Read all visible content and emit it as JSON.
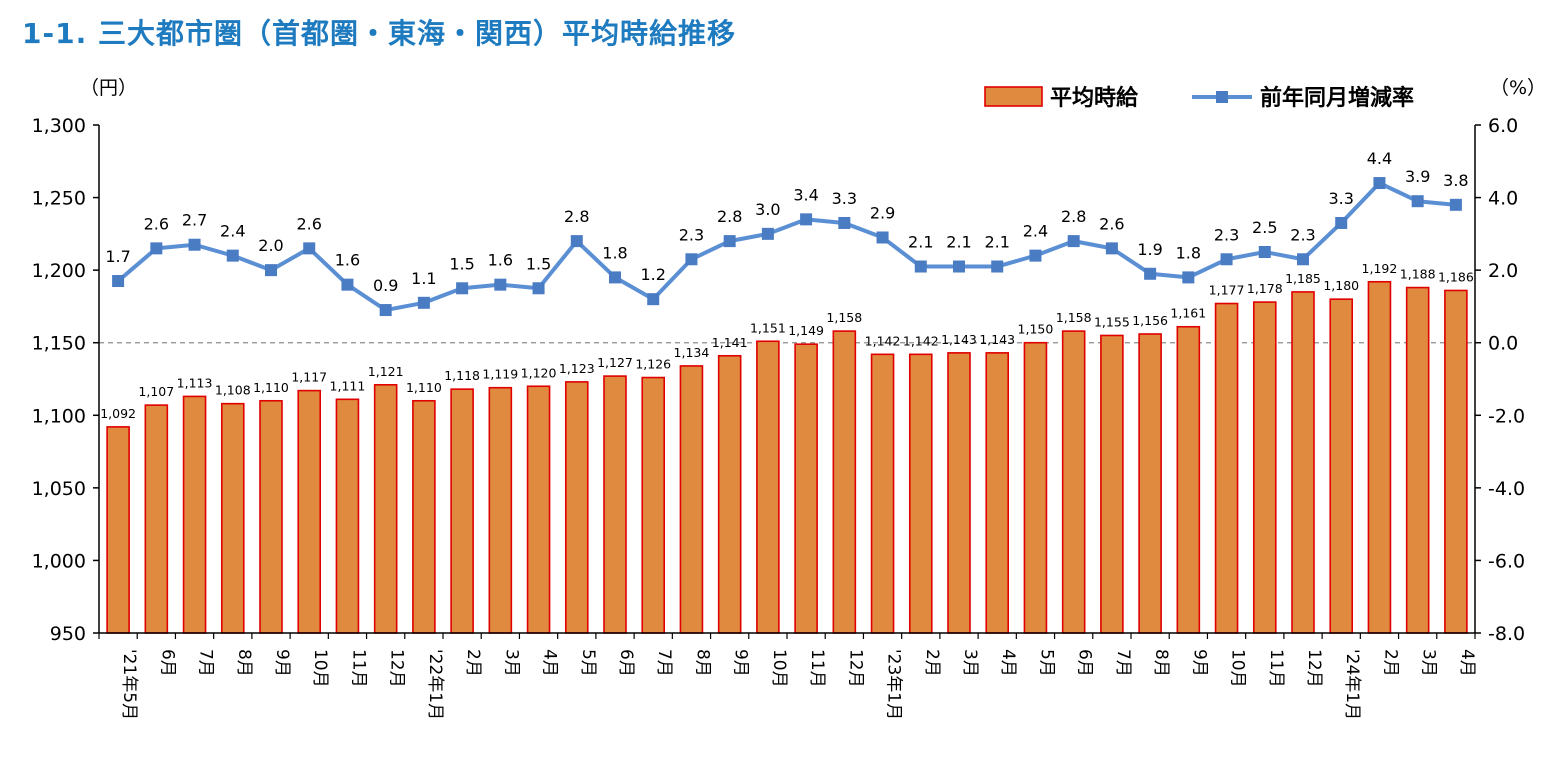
{
  "page": {
    "title": "1-1. 三大都市圏（首都圏・東海・関西）平均時給推移"
  },
  "chart_data": {
    "type": "bar",
    "categories": [
      "'21年5月",
      "6月",
      "7月",
      "8月",
      "9月",
      "10月",
      "11月",
      "12月",
      "'22年1月",
      "2月",
      "3月",
      "4月",
      "5月",
      "6月",
      "7月",
      "8月",
      "9月",
      "10月",
      "11月",
      "12月",
      "'23年1月",
      "2月",
      "3月",
      "4月",
      "5月",
      "6月",
      "7月",
      "8月",
      "9月",
      "10月",
      "11月",
      "12月",
      "'24年1月",
      "2月",
      "3月",
      "4月"
    ],
    "y_left": {
      "unit_label": "（円）",
      "range": [
        950,
        1300
      ],
      "ticks": [
        "950",
        "1,000",
        "1,050",
        "1,100",
        "1,150",
        "1,200",
        "1,250",
        "1,300"
      ]
    },
    "y_right": {
      "unit_label": "（%）",
      "range": [
        -8.0,
        6.0
      ],
      "ticks": [
        "-8.0",
        "-6.0",
        "-4.0",
        "-2.0",
        "0.0",
        "2.0",
        "4.0",
        "6.0"
      ]
    },
    "reference_line": {
      "axis": "right",
      "value": 0.0,
      "style": "dashed"
    },
    "series": [
      {
        "name": "平均時給",
        "type": "bar",
        "axis": "left",
        "color": "#e08a40",
        "border": "#e00000",
        "values": [
          1092,
          1107,
          1113,
          1108,
          1110,
          1117,
          1111,
          1121,
          1110,
          1118,
          1119,
          1120,
          1123,
          1127,
          1126,
          1134,
          1141,
          1151,
          1149,
          1158,
          1142,
          1142,
          1143,
          1143,
          1150,
          1158,
          1155,
          1156,
          1161,
          1177,
          1178,
          1185,
          1180,
          1192,
          1188,
          1186
        ],
        "labels": [
          "1,092",
          "1,107",
          "1,113",
          "1,108",
          "1,110",
          "1,117",
          "1,111",
          "1,121",
          "1,110",
          "1,118",
          "1,119",
          "1,120",
          "1,123",
          "1,127",
          "1,126",
          "1,134",
          "1,141",
          "1,151",
          "1,149",
          "1,158",
          "1,142",
          "1,142",
          "1,143",
          "1,143",
          "1,150",
          "1,158",
          "1,155",
          "1,156",
          "1,161",
          "1,177",
          "1,178",
          "1,185",
          "1,180",
          "1,192",
          "1,188",
          "1,186"
        ]
      },
      {
        "name": "前年同月増減率",
        "type": "line",
        "axis": "right",
        "color": "#5b8fd4",
        "marker": "square",
        "marker_color": "#4a7cc4",
        "values": [
          1.7,
          2.6,
          2.7,
          2.4,
          2.0,
          2.6,
          1.6,
          0.9,
          1.1,
          1.5,
          1.6,
          1.5,
          2.8,
          1.8,
          1.2,
          2.3,
          2.8,
          3.0,
          3.4,
          3.3,
          2.9,
          2.1,
          2.1,
          2.1,
          2.4,
          2.8,
          2.6,
          1.9,
          1.8,
          2.3,
          2.5,
          2.3,
          3.3,
          4.4,
          3.9,
          3.8
        ],
        "labels": [
          "1.7",
          "2.6",
          "2.7",
          "2.4",
          "2.0",
          "2.6",
          "1.6",
          "0.9",
          "1.1",
          "1.5",
          "1.6",
          "1.5",
          "2.8",
          "1.8",
          "1.2",
          "2.3",
          "2.8",
          "3.0",
          "3.4",
          "3.3",
          "2.9",
          "2.1",
          "2.1",
          "2.1",
          "2.4",
          "2.8",
          "2.6",
          "1.9",
          "1.8",
          "2.3",
          "2.5",
          "2.3",
          "3.3",
          "4.4",
          "3.9",
          "3.8"
        ]
      }
    ],
    "legend": {
      "position": "top-right",
      "items": [
        "平均時給",
        "前年同月増減率"
      ]
    }
  }
}
